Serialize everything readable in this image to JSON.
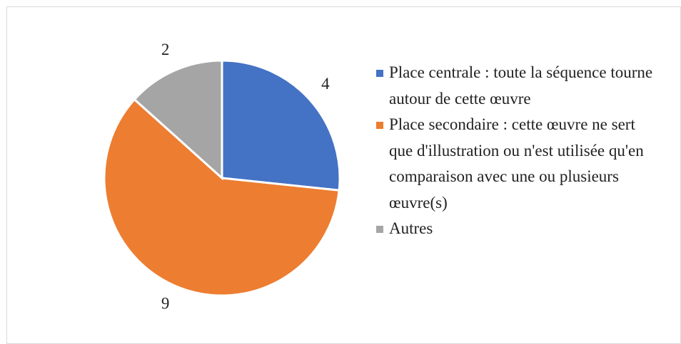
{
  "chart_data": {
    "type": "pie",
    "categories": [
      "Place centrale : toute la séquence tourne autour de cette œuvre",
      "Place secondaire : cette œuvre ne sert que d'illustration ou n'est utilisée qu'en comparaison avec une ou plusieurs œuvre(s)",
      "Autres"
    ],
    "values": [
      4,
      9,
      2
    ],
    "colors": [
      "#4472c4",
      "#ed7d31",
      "#a5a5a5"
    ],
    "legend": "right"
  }
}
